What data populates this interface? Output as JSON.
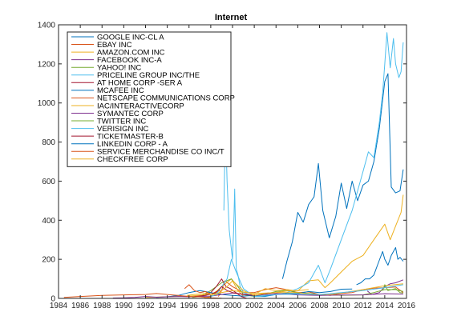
{
  "chart_data": {
    "type": "line",
    "title": "Internet",
    "xlabel": "",
    "ylabel": "",
    "xlim": [
      1984,
      2016
    ],
    "ylim": [
      0,
      1400
    ],
    "xticks": [
      1984,
      1986,
      1988,
      1990,
      1992,
      1994,
      1996,
      1998,
      2000,
      2002,
      2004,
      2006,
      2008,
      2010,
      2012,
      2014,
      2016
    ],
    "yticks": [
      0,
      200,
      400,
      600,
      800,
      1000,
      1200,
      1400
    ],
    "grid": false,
    "legend_position": "top-left",
    "series": [
      {
        "name": "GOOGLE INC-CL A",
        "color": "#0072BD",
        "x": [
          2004.6,
          2005.0,
          2005.5,
          2006.0,
          2006.5,
          2007.0,
          2007.5,
          2007.9,
          2008.3,
          2008.9,
          2009.5,
          2010.0,
          2010.5,
          2011.0,
          2011.5,
          2012.0,
          2012.5,
          2013.0,
          2013.5,
          2014.0,
          2014.3,
          2014.6,
          2015.0,
          2015.4,
          2015.7
        ],
        "y": [
          100,
          190,
          290,
          440,
          390,
          480,
          520,
          690,
          450,
          310,
          420,
          590,
          460,
          600,
          500,
          580,
          600,
          700,
          870,
          1110,
          1150,
          570,
          540,
          550,
          660
        ]
      },
      {
        "name": "EBAY INC",
        "color": "#D95319",
        "x": [
          1998.7,
          1999.0,
          1999.3,
          2000.0,
          2001.0,
          2002.0,
          2003.0,
          2004.0,
          2005.0,
          2006.0,
          2007.0,
          2008.0,
          2009.0,
          2010.0,
          2011.0,
          2012.0,
          2013.0,
          2014.0,
          2015.0,
          2015.7
        ],
        "y": [
          10,
          40,
          90,
          60,
          30,
          30,
          45,
          55,
          45,
          30,
          33,
          20,
          15,
          25,
          30,
          45,
          52,
          55,
          58,
          30
        ]
      },
      {
        "name": "AMAZON.COM INC",
        "color": "#EDB120",
        "x": [
          1997.4,
          1998.0,
          1999.0,
          1999.9,
          2000.5,
          2001.0,
          2002.0,
          2003.0,
          2004.0,
          2005.0,
          2006.0,
          2007.0,
          2007.9,
          2008.5,
          2009.0,
          2010.0,
          2011.0,
          2012.0,
          2013.0,
          2014.0,
          2014.5,
          2015.0,
          2015.5,
          2015.7
        ],
        "y": [
          2,
          10,
          60,
          100,
          40,
          12,
          20,
          50,
          40,
          45,
          38,
          90,
          95,
          55,
          80,
          135,
          190,
          220,
          300,
          380,
          300,
          370,
          440,
          530
        ]
      },
      {
        "name": "FACEBOOK INC-A",
        "color": "#7E2F8E",
        "x": [
          2012.4,
          2012.8,
          2013.5,
          2014.0,
          2014.5,
          2015.0,
          2015.7
        ],
        "y": [
          38,
          20,
          30,
          60,
          75,
          80,
          95
        ]
      },
      {
        "name": "YAHOO! INC",
        "color": "#77AC30",
        "x": [
          1996.3,
          1997.0,
          1998.0,
          1999.0,
          1999.9,
          2000.5,
          2001.0,
          2002.0,
          2003.0,
          2004.0,
          2005.0,
          2006.0,
          2008.0,
          2010.0,
          2012.0,
          2013.0,
          2014.0,
          2015.0,
          2015.7
        ],
        "y": [
          5,
          10,
          40,
          80,
          100,
          60,
          20,
          10,
          22,
          35,
          40,
          30,
          20,
          16,
          18,
          30,
          45,
          45,
          35
        ]
      },
      {
        "name": "PRICELINE GROUP INC/THE",
        "color": "#4DBEEE",
        "x": [
          1999.2,
          1999.35,
          1999.5,
          1999.7,
          1999.9,
          2000.0,
          2000.1,
          2000.2,
          2000.35,
          2000.5,
          2000.7,
          2001.0,
          2001.5,
          2002.0,
          2003.0,
          2004.0,
          2005.0,
          2006.0,
          2007.0,
          2007.9,
          2008.5,
          2009.0,
          2010.0,
          2011.0,
          2012.0,
          2012.5,
          2013.0,
          2013.5,
          2013.8,
          2014.0,
          2014.2,
          2014.5,
          2014.8,
          2015.0,
          2015.3,
          2015.5,
          2015.7
        ],
        "y": [
          450,
          900,
          600,
          350,
          250,
          200,
          350,
          560,
          150,
          120,
          60,
          30,
          20,
          10,
          10,
          20,
          30,
          50,
          80,
          170,
          80,
          150,
          300,
          450,
          650,
          750,
          720,
          900,
          1050,
          1200,
          1360,
          1180,
          1330,
          1200,
          1130,
          1160,
          1310
        ]
      },
      {
        "name": "AT HOME CORP -SER A",
        "color": "#A2142F",
        "x": [
          1997.5,
          1998.0,
          1998.5,
          1999.0,
          1999.4,
          1999.8,
          2000.3,
          2000.8,
          2001.3
        ],
        "y": [
          20,
          30,
          60,
          100,
          60,
          50,
          30,
          10,
          1
        ]
      },
      {
        "name": "MCAFEE INC",
        "color": "#0072BD",
        "x": [
          1993.0,
          1994.0,
          1995.0,
          1996.0,
          1997.0,
          1998.0,
          1999.0,
          2000.0,
          2001.0,
          2002.0,
          2003.0,
          2004.0,
          2005.0,
          2006.0,
          2007.0,
          2008.0,
          2009.0,
          2010.0,
          2011.0
        ],
        "y": [
          5,
          8,
          15,
          30,
          40,
          30,
          20,
          15,
          12,
          15,
          12,
          20,
          25,
          25,
          35,
          30,
          35,
          47,
          48
        ]
      },
      {
        "name": "NETSCAPE COMMUNICATIONS CORP",
        "color": "#D95319",
        "x": [
          1995.6,
          1996.0,
          1996.5,
          1997.0,
          1997.5,
          1998.0,
          1998.5,
          1998.9
        ],
        "y": [
          50,
          70,
          40,
          30,
          35,
          20,
          35,
          40
        ]
      },
      {
        "name": "IAC/INTERACTIVECORP",
        "color": "#EDB120",
        "x": [
          1992.0,
          1994.0,
          1996.0,
          1998.0,
          2000.0,
          2002.0,
          2004.0,
          2006.0,
          2008.0,
          2009.0,
          2010.0,
          2012.0,
          2014.0,
          2015.7
        ],
        "y": [
          5,
          8,
          12,
          20,
          40,
          25,
          30,
          30,
          15,
          20,
          28,
          45,
          65,
          75
        ]
      },
      {
        "name": "SYMANTEC CORP",
        "color": "#7E2F8E",
        "x": [
          1989.0,
          1990.0,
          1991.0,
          1992.0,
          1993.0,
          1994.0,
          1995.0,
          1996.0,
          1997.0,
          1998.0,
          1999.0,
          2000.0,
          2002.0,
          2004.0,
          2006.0,
          2008.0,
          2010.0,
          2012.0,
          2014.0,
          2015.7
        ],
        "y": [
          2,
          3,
          5,
          10,
          6,
          8,
          10,
          8,
          10,
          12,
          20,
          28,
          15,
          25,
          18,
          15,
          17,
          18,
          24,
          22
        ]
      },
      {
        "name": "TWITTER INC",
        "color": "#77AC30",
        "x": [
          2013.85,
          2014.0,
          2014.3,
          2014.6,
          2015.0,
          2015.4,
          2015.7
        ],
        "y": [
          45,
          70,
          40,
          45,
          50,
          30,
          28
        ]
      },
      {
        "name": "VERISIGN INC",
        "color": "#4DBEEE",
        "x": [
          1998.0,
          1998.5,
          1999.0,
          1999.5,
          1999.9,
          2000.3,
          2001.0,
          2002.0,
          2003.0,
          2004.0,
          2006.0,
          2008.0,
          2010.0,
          2012.0,
          2014.0,
          2015.7
        ],
        "y": [
          10,
          20,
          60,
          100,
          200,
          140,
          50,
          10,
          15,
          20,
          22,
          20,
          30,
          40,
          55,
          70
        ]
      },
      {
        "name": "TICKETMASTER-B",
        "color": "#A2142F",
        "x": [
          1996.5,
          1997.5,
          1998.5,
          1999.0,
          1999.5,
          2000.0,
          2001.0,
          2002.0,
          2003.0,
          2003.3
        ],
        "y": [
          10,
          15,
          30,
          60,
          40,
          30,
          20,
          15,
          25,
          28
        ]
      },
      {
        "name": "LINKEDIN CORP - A",
        "color": "#0072BD",
        "x": [
          2011.4,
          2011.8,
          2012.2,
          2012.6,
          2013.0,
          2013.4,
          2013.8,
          2014.0,
          2014.3,
          2014.6,
          2015.0,
          2015.2,
          2015.4,
          2015.7
        ],
        "y": [
          70,
          80,
          100,
          100,
          120,
          180,
          240,
          200,
          170,
          220,
          260,
          200,
          210,
          190
        ]
      },
      {
        "name": "SERVICE MERCHANDISE CO INC/T",
        "color": "#D95319",
        "x": [
          1984.5,
          1986.0,
          1988.0,
          1990.0,
          1992.0,
          1993.0,
          1994.0,
          1995.0,
          1996.0,
          1997.0,
          1998.0,
          1999.0
        ],
        "y": [
          5,
          10,
          15,
          18,
          20,
          25,
          20,
          15,
          10,
          8,
          3,
          1
        ]
      },
      {
        "name": "CHECKFREE CORP",
        "color": "#EDB120",
        "x": [
          1995.8,
          1996.5,
          1997.5,
          1998.5,
          1999.5,
          2000.0,
          2001.0,
          2002.0,
          2003.0,
          2004.0,
          2005.0,
          2006.0,
          2007.0
        ],
        "y": [
          15,
          20,
          25,
          20,
          60,
          90,
          40,
          15,
          25,
          30,
          38,
          40,
          45
        ]
      }
    ]
  }
}
